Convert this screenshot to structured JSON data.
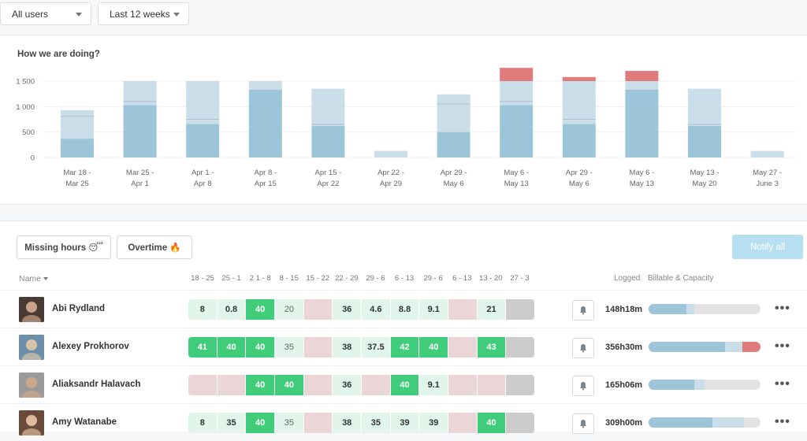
{
  "filters": {
    "users": "All users",
    "period": "Last 12 weeks"
  },
  "chart_data": {
    "type": "bar",
    "title": "How we are doing?",
    "y_ticks": [
      "1 500",
      "1 000",
      "500",
      "0"
    ],
    "y_tick_values": [
      1500,
      1000,
      500,
      0
    ],
    "ylim": [
      0,
      1500
    ],
    "categories": [
      [
        "Mar 18 -",
        "Mar 25"
      ],
      [
        "Mar 25 -",
        "Apr 1"
      ],
      [
        "Apr  1 -",
        "Apr 8"
      ],
      [
        "Apr 8 -",
        "Apr 15"
      ],
      [
        "Apr 15 -",
        "Apr 22"
      ],
      [
        "Apr 22 -",
        "Apr  29"
      ],
      [
        "Apr  29 -",
        "May 6"
      ],
      [
        "May 6 -",
        "May 13"
      ],
      [
        "Apr  29 -",
        "May 6"
      ],
      [
        "May 6 -",
        "May 13"
      ],
      [
        "May 13 -",
        "May 20"
      ],
      [
        "May 27 -",
        "June 3"
      ]
    ],
    "series": [
      {
        "values": [
          370,
          1030,
          660,
          1330,
          620,
          0,
          500,
          1030,
          660,
          1330,
          620,
          0
        ],
        "color": "#9cc5d9"
      },
      {
        "values": [
          560,
          470,
          840,
          170,
          730,
          130,
          740,
          470,
          840,
          170,
          730,
          130
        ],
        "color": "#c9dee9"
      },
      {
        "values": [
          0,
          0,
          0,
          0,
          0,
          0,
          0,
          260,
          80,
          200,
          0,
          0
        ],
        "color": "#e07b7b"
      }
    ],
    "inner_lines": [
      810,
      1100,
      750,
      1310,
      650,
      null,
      1050,
      1100,
      750,
      1310,
      650,
      null
    ],
    "grid": true
  },
  "actions": {
    "missing_hours": "Missing hours 😴",
    "overtime": "Overtime 🔥",
    "notify_all": "Notify all"
  },
  "table": {
    "name_header": "Name",
    "logged_header": "Logged",
    "billable_header": "Billable & Capacity",
    "weeks": [
      "18 - 25",
      "25 - 1",
      "2 1 - 8",
      "8 - 15",
      "15 - 22",
      "22 - 29",
      "29 - 6",
      "6 - 13",
      "29 - 6",
      "6 - 13",
      "13 - 20",
      "27 - 3"
    ],
    "rows": [
      {
        "name": "Abi Rydland",
        "cells": [
          {
            "v": "8",
            "t": "l"
          },
          {
            "v": "0.8",
            "t": "l"
          },
          {
            "v": "40",
            "t": "g"
          },
          {
            "v": "20",
            "t": "ld"
          },
          {
            "v": "",
            "t": "p"
          },
          {
            "v": "36",
            "t": "l"
          },
          {
            "v": "4.6",
            "t": "l"
          },
          {
            "v": "8.8",
            "t": "l"
          },
          {
            "v": "9.1",
            "t": "l"
          },
          {
            "v": "",
            "t": "p"
          },
          {
            "v": "21",
            "t": "l"
          },
          {
            "v": "",
            "t": "x"
          }
        ],
        "logged": "148h18m",
        "billable": 0.34,
        "capacity": 0.41,
        "over": 0,
        "avatar_colors": [
          "#4a3a34",
          "#c9a08a"
        ]
      },
      {
        "name": "Alexey Prokhorov",
        "cells": [
          {
            "v": "41",
            "t": "g"
          },
          {
            "v": "40",
            "t": "g"
          },
          {
            "v": "40",
            "t": "g"
          },
          {
            "v": "35",
            "t": "ld"
          },
          {
            "v": "",
            "t": "p"
          },
          {
            "v": "38",
            "t": "l"
          },
          {
            "v": "37.5",
            "t": "l"
          },
          {
            "v": "42",
            "t": "g"
          },
          {
            "v": "40",
            "t": "g"
          },
          {
            "v": "",
            "t": "p"
          },
          {
            "v": "43",
            "t": "g"
          },
          {
            "v": "",
            "t": "x"
          }
        ],
        "logged": "356h30m",
        "billable": 0.68,
        "capacity": 0.84,
        "over": 0.16,
        "avatar_colors": [
          "#6b8fa8",
          "#d6c3a8"
        ]
      },
      {
        "name": "Aliaksandr Halavach",
        "cells": [
          {
            "v": "",
            "t": "p"
          },
          {
            "v": "",
            "t": "p"
          },
          {
            "v": "40",
            "t": "g"
          },
          {
            "v": "40",
            "t": "g"
          },
          {
            "v": "",
            "t": "p"
          },
          {
            "v": "36",
            "t": "l"
          },
          {
            "v": "",
            "t": "p"
          },
          {
            "v": "40",
            "t": "g"
          },
          {
            "v": "9.1",
            "t": "l"
          },
          {
            "v": "",
            "t": "p"
          },
          {
            "v": "",
            "t": "p"
          },
          {
            "v": "",
            "t": "x"
          }
        ],
        "logged": "165h06m",
        "billable": 0.41,
        "capacity": 0.5,
        "over": 0,
        "avatar_colors": [
          "#9a9a9a",
          "#caa88c"
        ]
      },
      {
        "name": "Amy Watanabe",
        "cells": [
          {
            "v": "8",
            "t": "l"
          },
          {
            "v": "35",
            "t": "l"
          },
          {
            "v": "40",
            "t": "g"
          },
          {
            "v": "35",
            "t": "ld"
          },
          {
            "v": "",
            "t": "p"
          },
          {
            "v": "38",
            "t": "l"
          },
          {
            "v": "35",
            "t": "l"
          },
          {
            "v": "39",
            "t": "l"
          },
          {
            "v": "39",
            "t": "l"
          },
          {
            "v": "",
            "t": "p"
          },
          {
            "v": "40",
            "t": "g"
          },
          {
            "v": "",
            "t": "x"
          }
        ],
        "logged": "309h00m",
        "billable": 0.57,
        "capacity": 0.85,
        "over": 0,
        "avatar_colors": [
          "#6a4a3a",
          "#e0b89c"
        ]
      }
    ]
  }
}
